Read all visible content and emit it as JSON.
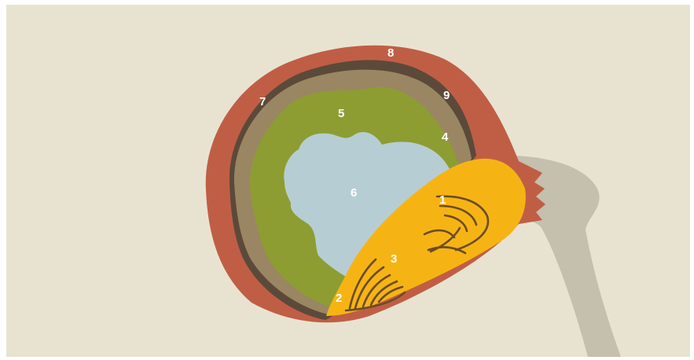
{
  "colors": {
    "background": "#e8e3d1",
    "stalk": "#c5bfad",
    "outer_layer": "#c05e45",
    "dark_band": "#5b4a3a",
    "brown_layer": "#9b8663",
    "green_layer": "#8d9d32",
    "cavity": "#b7cdd4",
    "embryo": "#f6b414",
    "embryo_lines": "#6b4b26",
    "label_text": "#ffffff"
  },
  "labels": [
    "1",
    "2",
    "3",
    "4",
    "5",
    "6",
    "7",
    "8",
    "9"
  ]
}
